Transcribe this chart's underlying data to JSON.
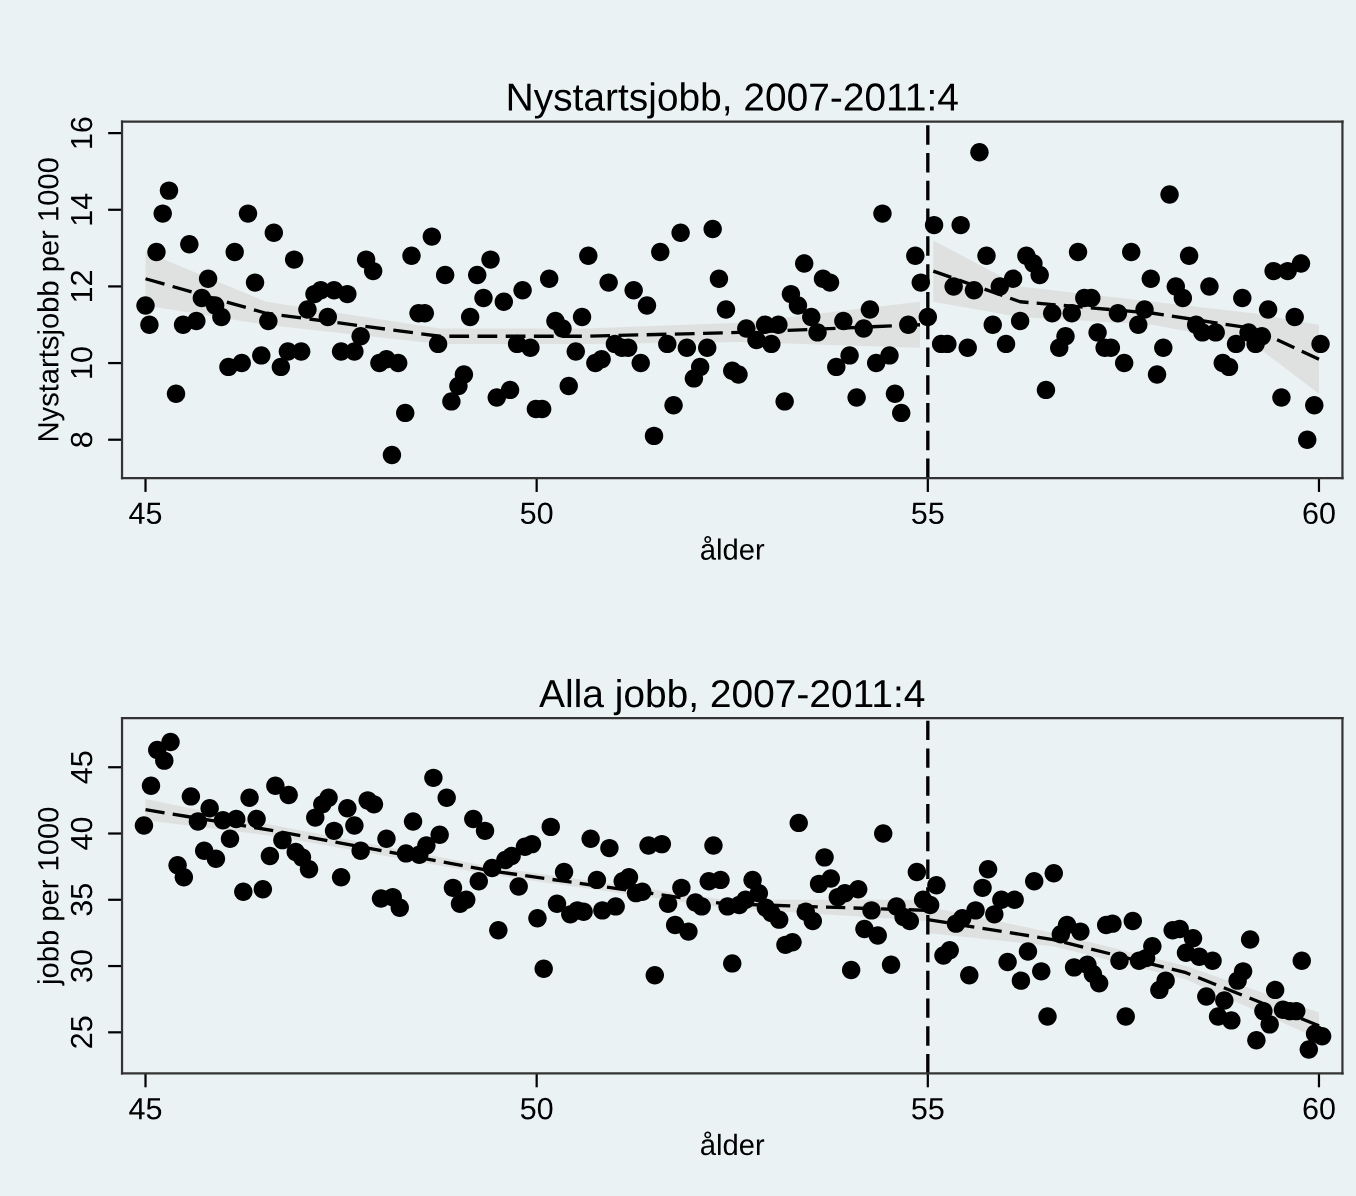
{
  "chart_data": [
    {
      "type": "scatter",
      "title": "Nystartsjobb, 2007-2011:4",
      "xlabel": "ålder",
      "ylabel": "Nystartsjobb per 1000",
      "xlim": [
        44.7,
        60.3
      ],
      "xticks": [
        45,
        50,
        55,
        60
      ],
      "ylim": [
        7.0,
        16.3
      ],
      "yticks": [
        8,
        10,
        12,
        14,
        16
      ],
      "grid": false,
      "marker": "circle",
      "ref_lines": [
        {
          "axis": "x",
          "value": 55,
          "color": "#000000",
          "line_style": "dashed"
        }
      ],
      "series": [
        {
          "color": "#000000",
          "x": [
            45.0,
            45.05,
            45.14,
            45.22,
            45.3,
            45.39,
            45.48,
            45.56,
            45.65,
            45.72,
            45.8,
            45.89,
            45.97,
            46.06,
            46.14,
            46.23,
            46.31,
            46.4,
            46.48,
            46.57,
            46.64,
            46.73,
            46.82,
            46.9,
            46.99,
            47.07,
            47.16,
            47.24,
            47.33,
            47.41,
            47.5,
            47.58,
            47.67,
            47.75,
            47.82,
            47.91,
            47.99,
            48.08,
            48.15,
            48.23,
            48.32,
            48.4,
            48.49,
            48.57,
            48.66,
            48.74,
            48.83,
            48.91,
            49.0,
            49.07,
            49.15,
            49.24,
            49.32,
            49.41,
            49.49,
            49.58,
            49.66,
            49.75,
            49.82,
            49.92,
            49.99,
            50.07,
            50.16,
            50.24,
            50.33,
            50.41,
            50.5,
            50.58,
            50.66,
            50.75,
            50.83,
            50.92,
            51.0,
            51.09,
            51.17,
            51.24,
            51.33,
            51.41,
            51.5,
            51.58,
            51.67,
            51.75,
            51.84,
            51.92,
            52.01,
            52.09,
            52.18,
            52.25,
            52.33,
            52.42,
            52.5,
            52.58,
            52.68,
            52.81,
            52.92,
            53.0,
            53.09,
            53.17,
            53.25,
            53.34,
            53.42,
            53.51,
            53.59,
            53.66,
            53.75,
            53.83,
            53.92,
            54.0,
            54.09,
            54.18,
            54.26,
            54.34,
            54.42,
            54.51,
            54.58,
            54.66,
            54.75,
            54.84,
            54.91,
            55.0,
            55.08,
            55.17,
            55.25,
            55.33,
            55.42,
            55.51,
            55.59,
            55.66,
            55.75,
            55.83,
            55.92,
            56.0,
            56.09,
            56.18,
            56.26,
            56.35,
            56.43,
            56.51,
            56.59,
            56.68,
            56.76,
            56.84,
            56.92,
            57.0,
            57.09,
            57.17,
            57.26,
            57.34,
            57.43,
            57.51,
            57.6,
            57.69,
            57.77,
            57.85,
            57.93,
            58.01,
            58.09,
            58.17,
            58.26,
            58.34,
            58.43,
            58.51,
            58.6,
            58.68,
            58.77,
            58.85,
            58.94,
            59.02,
            59.1,
            59.19,
            59.27,
            59.35,
            59.42,
            59.52,
            59.6,
            59.69,
            59.77,
            59.85,
            59.94,
            60.02
          ],
          "values": [
            11.5,
            11.0,
            12.9,
            13.9,
            14.5,
            9.2,
            11.0,
            13.1,
            11.1,
            11.7,
            12.2,
            11.5,
            11.2,
            9.9,
            12.9,
            10.0,
            13.9,
            12.1,
            10.2,
            11.1,
            13.4,
            9.9,
            10.3,
            12.7,
            10.3,
            11.4,
            11.8,
            11.9,
            11.2,
            11.9,
            10.3,
            11.8,
            10.3,
            10.7,
            12.7,
            12.4,
            10.0,
            10.1,
            7.6,
            10.0,
            8.7,
            12.8,
            11.3,
            11.3,
            13.3,
            10.5,
            12.3,
            9.0,
            9.4,
            9.7,
            11.2,
            12.3,
            11.7,
            12.7,
            9.1,
            11.6,
            9.3,
            10.5,
            11.9,
            10.4,
            8.8,
            8.8,
            12.2,
            11.1,
            10.9,
            9.4,
            10.3,
            11.2,
            12.8,
            10.0,
            10.1,
            12.1,
            10.5,
            10.4,
            10.4,
            11.9,
            10.0,
            11.5,
            8.1,
            12.9,
            10.5,
            8.9,
            13.4,
            10.4,
            9.6,
            9.9,
            10.4,
            13.5,
            12.2,
            11.4,
            9.8,
            9.7,
            10.9,
            10.6,
            11.0,
            10.5,
            11.0,
            9.0,
            11.8,
            11.5,
            12.6,
            11.2,
            10.8,
            12.2,
            12.1,
            9.9,
            11.1,
            10.2,
            9.1,
            10.9,
            11.4,
            10.0,
            13.9,
            10.2,
            9.2,
            8.7,
            11.0,
            12.8,
            12.1,
            11.2,
            13.6,
            10.5,
            10.5,
            12.0,
            13.6,
            10.4,
            11.9,
            15.5,
            12.8,
            11.0,
            12.0,
            10.5,
            12.2,
            11.1,
            12.8,
            12.6,
            12.3,
            9.3,
            11.3,
            10.4,
            10.7,
            11.3,
            12.9,
            11.7,
            11.7,
            10.8,
            10.4,
            10.4,
            11.3,
            10.0,
            12.9,
            11.0,
            11.4,
            12.2,
            9.7,
            10.4,
            14.4,
            12.0,
            11.7,
            12.8,
            11.0,
            10.8,
            12.0,
            10.8,
            10.0,
            9.9,
            10.5,
            11.7,
            10.8,
            10.5,
            10.7,
            11.4,
            12.4,
            9.1,
            12.4,
            11.2,
            12.6,
            8.0,
            8.9,
            10.5
          ]
        },
        {
          "type": "line",
          "color": "#000000",
          "line_style": "dashed",
          "marker": "none",
          "x": [
            45,
            46.54,
            48.76,
            50.64,
            52.6,
            54.9
          ],
          "values": [
            12.2,
            11.3,
            10.7,
            10.7,
            10.8,
            11.0
          ],
          "lower": [
            11.5,
            11.0,
            10.5,
            10.5,
            10.55,
            10.4
          ],
          "upper": [
            12.9,
            11.6,
            10.9,
            10.9,
            11.05,
            11.6
          ]
        },
        {
          "type": "line",
          "color": "#000000",
          "line_style": "dashed",
          "marker": "none",
          "x": [
            55.07,
            56.18,
            57.88,
            59.16,
            60
          ],
          "values": [
            12.4,
            11.6,
            11.3,
            10.9,
            10.1
          ],
          "lower": [
            11.6,
            11.2,
            11.0,
            10.5,
            9.2
          ],
          "upper": [
            13.2,
            12.0,
            11.6,
            11.3,
            11.0
          ]
        }
      ]
    },
    {
      "type": "scatter",
      "title": "Alla jobb, 2007-2011:4",
      "xlabel": "ålder",
      "ylabel": "jobb per 1000",
      "xlim": [
        44.7,
        60.3
      ],
      "xticks": [
        45,
        50,
        55,
        60
      ],
      "ylim": [
        21.9,
        48.7
      ],
      "yticks": [
        25,
        30,
        35,
        40,
        45
      ],
      "grid": false,
      "marker": "circle",
      "ref_lines": [
        {
          "axis": "x",
          "value": 55,
          "color": "#000000",
          "line_style": "dashed"
        }
      ],
      "series": [
        {
          "color": "#000000",
          "x": [
            44.98,
            45.07,
            45.15,
            45.24,
            45.32,
            45.41,
            45.49,
            45.58,
            45.67,
            45.75,
            45.82,
            45.9,
            45.99,
            46.08,
            46.16,
            46.25,
            46.33,
            46.42,
            46.5,
            46.59,
            46.66,
            46.75,
            46.83,
            46.92,
            47.0,
            47.09,
            47.17,
            47.26,
            47.34,
            47.41,
            47.5,
            47.58,
            47.67,
            47.75,
            47.84,
            47.92,
            48.01,
            48.08,
            48.16,
            48.25,
            48.33,
            48.42,
            48.5,
            48.59,
            48.68,
            48.76,
            48.85,
            48.93,
            49.02,
            49.1,
            49.19,
            49.26,
            49.34,
            49.43,
            49.51,
            49.6,
            49.68,
            49.77,
            49.85,
            49.94,
            50.01,
            50.09,
            50.18,
            50.26,
            50.35,
            50.43,
            50.52,
            50.6,
            50.69,
            50.77,
            50.84,
            50.93,
            51.01,
            51.1,
            51.18,
            51.27,
            51.35,
            51.43,
            51.51,
            51.6,
            51.68,
            51.77,
            51.85,
            51.94,
            52.03,
            52.11,
            52.2,
            52.26,
            52.35,
            52.44,
            52.5,
            52.59,
            52.67,
            52.76,
            52.84,
            52.93,
            53.0,
            53.1,
            53.18,
            53.27,
            53.35,
            53.44,
            53.53,
            53.61,
            53.68,
            53.76,
            53.85,
            53.94,
            54.02,
            54.11,
            54.19,
            54.28,
            54.36,
            54.43,
            54.53,
            54.6,
            54.69,
            54.77,
            54.86,
            54.94,
            55.03,
            55.11,
            55.2,
            55.28,
            55.36,
            55.44,
            55.53,
            55.61,
            55.7,
            55.77,
            55.85,
            55.94,
            56.02,
            56.11,
            56.19,
            56.28,
            56.36,
            56.45,
            56.53,
            56.61,
            56.7,
            56.78,
            56.87,
            56.95,
            57.04,
            57.11,
            57.19,
            57.28,
            57.36,
            57.45,
            57.53,
            57.62,
            57.7,
            57.79,
            57.87,
            57.96,
            58.04,
            58.13,
            58.22,
            58.3,
            58.39,
            58.47,
            58.56,
            58.64,
            58.71,
            58.79,
            58.88,
            58.96,
            59.03,
            59.12,
            59.2,
            59.29,
            59.37,
            59.44,
            59.54,
            59.63,
            59.71,
            59.78,
            59.87,
            59.95,
            60.04
          ],
          "values": [
            40.6,
            43.6,
            46.3,
            45.5,
            46.9,
            37.6,
            36.7,
            42.8,
            40.9,
            38.7,
            41.9,
            38.1,
            41.0,
            39.6,
            41.1,
            35.6,
            42.7,
            41.1,
            35.8,
            38.3,
            43.6,
            39.5,
            42.9,
            38.6,
            38.2,
            37.3,
            41.2,
            42.2,
            42.7,
            40.2,
            36.7,
            41.9,
            40.6,
            38.7,
            42.5,
            42.2,
            35.1,
            39.6,
            35.2,
            34.4,
            38.5,
            40.9,
            38.4,
            39.1,
            44.2,
            39.9,
            42.7,
            35.9,
            34.7,
            35.0,
            41.1,
            36.4,
            40.2,
            37.4,
            32.7,
            38.0,
            38.3,
            36.0,
            39.0,
            39.2,
            33.6,
            29.8,
            40.5,
            34.7,
            37.1,
            33.9,
            34.2,
            34.1,
            39.6,
            36.5,
            34.2,
            38.9,
            34.5,
            36.4,
            36.7,
            35.5,
            35.6,
            39.1,
            29.3,
            39.2,
            34.7,
            33.1,
            35.9,
            32.6,
            34.8,
            34.5,
            36.4,
            39.1,
            36.5,
            34.5,
            30.2,
            34.6,
            35.0,
            36.5,
            35.5,
            34.4,
            34.0,
            33.5,
            31.6,
            31.8,
            40.8,
            34.1,
            33.4,
            36.2,
            38.2,
            36.6,
            35.2,
            35.5,
            29.7,
            35.8,
            32.8,
            34.2,
            32.3,
            40.0,
            30.1,
            34.5,
            33.7,
            33.4,
            37.1,
            35.0,
            34.6,
            36.1,
            30.8,
            31.2,
            33.2,
            33.6,
            29.3,
            34.2,
            35.9,
            37.3,
            33.9,
            35.0,
            30.3,
            35.0,
            28.9,
            31.1,
            36.4,
            29.6,
            26.2,
            37.0,
            32.4,
            33.1,
            29.9,
            32.6,
            30.1,
            29.4,
            28.7,
            33.1,
            33.2,
            30.4,
            26.2,
            33.4,
            30.4,
            30.6,
            31.5,
            28.2,
            28.9,
            32.7,
            32.8,
            31.0,
            32.1,
            30.7,
            27.7,
            30.4,
            26.2,
            27.4,
            25.9,
            28.9,
            29.6,
            32.0,
            24.4,
            26.6,
            25.6,
            28.2,
            26.7,
            26.6,
            26.6,
            30.4,
            23.7,
            24.9,
            24.7
          ]
        },
        {
          "type": "line",
          "color": "#000000",
          "line_style": "dashed",
          "marker": "none",
          "x": [
            45,
            46.65,
            49.4,
            52.4,
            55
          ],
          "values": [
            41.8,
            40.2,
            37.2,
            34.7,
            34.2
          ],
          "lower": [
            41.0,
            39.8,
            36.9,
            34.4,
            33.4
          ],
          "upper": [
            42.6,
            40.6,
            37.5,
            35.0,
            35.0
          ]
        },
        {
          "type": "line",
          "color": "#000000",
          "line_style": "dashed",
          "marker": "none",
          "x": [
            55,
            56.6,
            58.3,
            60
          ],
          "values": [
            33.5,
            32.0,
            29.5,
            25.5
          ],
          "lower": [
            32.5,
            31.5,
            29.0,
            24.5
          ],
          "upper": [
            34.5,
            32.5,
            30.0,
            26.5
          ]
        }
      ]
    }
  ]
}
